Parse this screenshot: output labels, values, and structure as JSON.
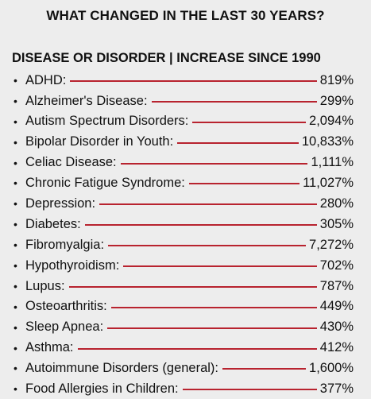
{
  "title": "WHAT CHANGED IN THE LAST 30 YEARS?",
  "subtitle": "DISEASE OR DISORDER | INCREASE SINCE 1990",
  "bullet": "•",
  "line_color": "#b8232f",
  "items": [
    {
      "name": "ADHD:",
      "value": "819%"
    },
    {
      "name": "Alzheimer's Disease:",
      "value": "299%"
    },
    {
      "name": "Autism Spectrum Disorders:",
      "value": "2,094%"
    },
    {
      "name": "Bipolar Disorder in Youth:",
      "value": "10,833%"
    },
    {
      "name": "Celiac Disease:",
      "value": "1,111%"
    },
    {
      "name": "Chronic Fatigue Syndrome:",
      "value": "11,027%"
    },
    {
      "name": "Depression:",
      "value": "280%"
    },
    {
      "name": "Diabetes:",
      "value": "305%"
    },
    {
      "name": "Fibromyalgia:",
      "value": "7,272%"
    },
    {
      "name": "Hypothyroidism:",
      "value": "702%"
    },
    {
      "name": "Lupus:",
      "value": "787%"
    },
    {
      "name": "Osteoarthritis:",
      "value": "449%"
    },
    {
      "name": "Sleep Apnea:",
      "value": "430%"
    },
    {
      "name": "Asthma:",
      "value": "412%"
    },
    {
      "name": "Autoimmune Disorders (general):",
      "value": "1,600%"
    },
    {
      "name": "Food Allergies in Children:",
      "value": "377%"
    }
  ]
}
